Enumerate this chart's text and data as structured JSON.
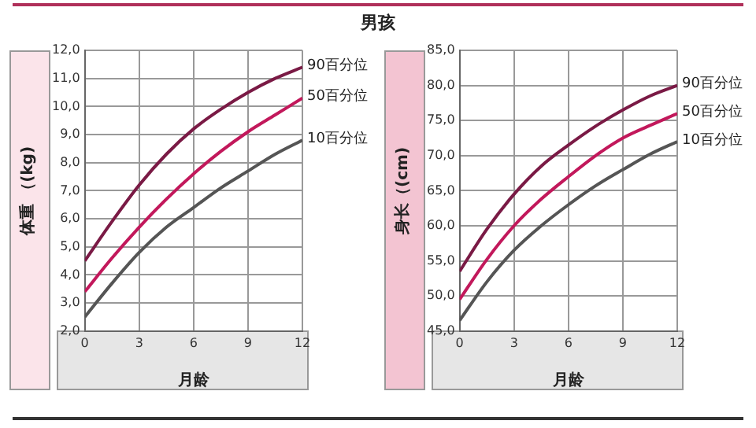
{
  "chart_data": [
    {
      "type": "other",
      "title": "男孩"
    },
    {
      "type": "line",
      "xlabel": "月龄",
      "ylabel": "体重 （(kg)",
      "x": [
        0,
        1.5,
        3,
        4.5,
        6,
        7.5,
        9,
        10.5,
        12
      ],
      "xlim": [
        0,
        12
      ],
      "xticks": [
        0,
        3,
        6,
        9,
        12
      ],
      "ylim": [
        2,
        12
      ],
      "yticks": [
        {
          "value": 2,
          "label": "2,0"
        },
        {
          "value": 3,
          "label": "3,0"
        },
        {
          "value": 4,
          "label": "4,0"
        },
        {
          "value": 5,
          "label": "5,0"
        },
        {
          "value": 6,
          "label": "6,0"
        },
        {
          "value": 7,
          "label": "7,0"
        },
        {
          "value": 8,
          "label": "8,0"
        },
        {
          "value": 9,
          "label": "9,0"
        },
        {
          "value": 10,
          "label": "10,0"
        },
        {
          "value": 11,
          "label": "11,0"
        },
        {
          "value": 12,
          "label": "12,0"
        }
      ],
      "grid": true,
      "legend": false,
      "marker": "none",
      "series": [
        {
          "name": "90百分位",
          "color": "#7a1a45",
          "values": [
            4.5,
            5.9,
            7.2,
            8.3,
            9.2,
            9.9,
            10.5,
            11.0,
            11.4
          ]
        },
        {
          "name": "50百分位",
          "color": "#c2185b",
          "values": [
            3.4,
            4.6,
            5.7,
            6.7,
            7.6,
            8.4,
            9.1,
            9.7,
            10.3
          ]
        },
        {
          "name": "10百分位",
          "color": "#555555",
          "values": [
            2.5,
            3.7,
            4.8,
            5.7,
            6.4,
            7.1,
            7.7,
            8.3,
            8.8
          ]
        }
      ]
    },
    {
      "type": "line",
      "xlabel": "月龄",
      "ylabel": "身长（(cm)",
      "x": [
        0,
        1.5,
        3,
        4.5,
        6,
        7.5,
        9,
        10.5,
        12
      ],
      "xlim": [
        0,
        12
      ],
      "xticks": [
        0,
        3,
        6,
        9,
        12
      ],
      "ylim": [
        45,
        85
      ],
      "yticks": [
        {
          "value": 45,
          "label": "45,0"
        },
        {
          "value": 50,
          "label": "50,0"
        },
        {
          "value": 55,
          "label": "55,0"
        },
        {
          "value": 60,
          "label": "60,0"
        },
        {
          "value": 65,
          "label": "65,0"
        },
        {
          "value": 70,
          "label": "70,0"
        },
        {
          "value": 75,
          "label": "75,0"
        },
        {
          "value": 80,
          "label": "80,0"
        },
        {
          "value": 85,
          "label": "85,0"
        }
      ],
      "grid": true,
      "legend": false,
      "marker": "none",
      "series": [
        {
          "name": "90百分位",
          "color": "#7a1a45",
          "values": [
            53.5,
            59.5,
            64.5,
            68.5,
            71.5,
            74.2,
            76.5,
            78.5,
            80.0
          ]
        },
        {
          "name": "50百分位",
          "color": "#c2185b",
          "values": [
            49.5,
            55.2,
            60.0,
            63.8,
            67.0,
            70.0,
            72.5,
            74.3,
            76.0
          ]
        },
        {
          "name": "10百分位",
          "color": "#555555",
          "values": [
            46.5,
            52.0,
            56.5,
            60.0,
            63.0,
            65.7,
            68.0,
            70.2,
            72.0
          ]
        }
      ]
    }
  ]
}
